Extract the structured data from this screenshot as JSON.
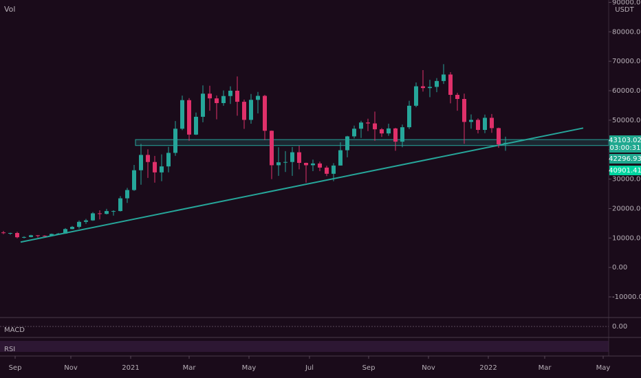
{
  "chart_data": {
    "type": "candlestick",
    "volume_label": "Vol",
    "currency": "USDT",
    "open": [
      11900,
      11650,
      11700,
      10250,
      10330,
      10920,
      10780,
      10670,
      11380,
      11500,
      13030,
      13780,
      15480,
      15970,
      18370,
      18180,
      19150,
      19150,
      23470,
      26280,
      33000,
      38200,
      35800,
      32270,
      34300,
      38900,
      47100,
      56800,
      45100,
      51150,
      59000,
      57400,
      55800,
      58200,
      60000,
      56250,
      50100,
      56900,
      58250,
      46400,
      34700,
      35700,
      35800,
      39100,
      35500,
      34700,
      35300,
      33900,
      31800,
      34600,
      39800,
      44500,
      47100,
      49200,
      48900,
      46900,
      45500,
      47200,
      42700,
      47600,
      54900,
      61500,
      60900,
      61300,
      63300,
      65500,
      58600,
      57200,
      49400,
      50100,
      46700,
      50800,
      47300,
      41800
    ],
    "high": [
      12400,
      11800,
      12100,
      10600,
      11100,
      10990,
      10950,
      11500,
      11720,
      13350,
      14100,
      15960,
      16480,
      18800,
      19400,
      19900,
      19400,
      24200,
      27000,
      34800,
      41950,
      40100,
      37850,
      38400,
      40950,
      49700,
      58350,
      57500,
      52600,
      61800,
      61700,
      58400,
      60100,
      61500,
      64850,
      57000,
      58900,
      59600,
      58600,
      46500,
      40800,
      39500,
      40900,
      41300,
      35600,
      36600,
      35950,
      34550,
      35400,
      42500,
      44700,
      48150,
      49800,
      50500,
      52900,
      47300,
      48800,
      47400,
      48500,
      56600,
      62800,
      67000,
      63700,
      64300,
      69000,
      66300,
      59300,
      59000,
      51950,
      50600,
      51900,
      52100,
      47500,
      44400
    ],
    "low": [
      11300,
      11100,
      9900,
      9850,
      10200,
      10150,
      10500,
      10550,
      11200,
      11400,
      12950,
      13200,
      14800,
      15800,
      16300,
      18000,
      17600,
      19000,
      21900,
      26000,
      28100,
      30400,
      28800,
      29300,
      32300,
      37900,
      46600,
      43000,
      44950,
      49300,
      53200,
      50300,
      54900,
      55500,
      51500,
      47050,
      48800,
      52300,
      43200,
      30000,
      31100,
      32400,
      31100,
      33300,
      28800,
      32700,
      32700,
      31000,
      29300,
      34600,
      37400,
      43800,
      43950,
      46300,
      43000,
      44300,
      44700,
      39600,
      40800,
      47000,
      54400,
      59700,
      57800,
      59500,
      62300,
      55700,
      53200,
      42000,
      47100,
      45500,
      45600,
      45700,
      40600,
      39600
    ],
    "close": [
      11650,
      11700,
      10250,
      10330,
      10920,
      10780,
      10670,
      11380,
      11500,
      13030,
      13780,
      15480,
      15970,
      18370,
      18180,
      19150,
      19150,
      23470,
      26280,
      33000,
      38200,
      35800,
      32270,
      34300,
      38900,
      47100,
      56800,
      45100,
      51150,
      59000,
      57400,
      55800,
      58200,
      60000,
      56250,
      50100,
      56900,
      58250,
      46400,
      34700,
      35700,
      35800,
      39100,
      35500,
      34700,
      35300,
      33900,
      31800,
      34600,
      39800,
      44500,
      47100,
      49200,
      48900,
      46900,
      45500,
      47200,
      42700,
      47600,
      54900,
      61500,
      60900,
      61300,
      63300,
      65500,
      58600,
      57200,
      49400,
      50100,
      46700,
      50800,
      47300,
      41800,
      42300
    ],
    "up_color": "#26a69a",
    "down_color": "#e0306a",
    "xlim": [
      0,
      88.5
    ],
    "xticks": [
      {
        "value": 2.2,
        "label": "Sep"
      },
      {
        "value": 10.3,
        "label": "Nov"
      },
      {
        "value": 19,
        "label": "2021"
      },
      {
        "value": 27.5,
        "label": "Mar"
      },
      {
        "value": 36.2,
        "label": "May"
      },
      {
        "value": 45,
        "label": "Jul"
      },
      {
        "value": 53.6,
        "label": "Sep"
      },
      {
        "value": 62.3,
        "label": "Nov"
      },
      {
        "value": 71,
        "label": "2022"
      },
      {
        "value": 79.2,
        "label": "Mar"
      },
      {
        "value": 87.7,
        "label": "May"
      }
    ],
    "ylim": [
      -17000,
      90800
    ],
    "yticks": [
      {
        "value": -10000,
        "label": "-10000.00"
      },
      {
        "value": 0,
        "label": "0.00"
      },
      {
        "value": 10000,
        "label": "10000.00"
      },
      {
        "value": 20000,
        "label": "20000.00"
      },
      {
        "value": 30000,
        "label": "30000.00"
      },
      {
        "value": 40000,
        "label": "40000.00"
      },
      {
        "value": 50000,
        "label": "50000.00"
      },
      {
        "value": 60000,
        "label": "60000.00"
      },
      {
        "value": 70000,
        "label": "70000.00"
      },
      {
        "value": 80000,
        "label": "80000.00"
      },
      {
        "value": 90000,
        "label": "90000.00"
      }
    ],
    "support_zone": {
      "x": [
        19.7,
        88.5
      ],
      "y": [
        41400,
        43400
      ],
      "color": "#26a69a"
    },
    "trendline": {
      "x": [
        3,
        84.8
      ],
      "y": [
        8600,
        47330
      ],
      "color": "#26a69a"
    },
    "price_tags": [
      "43103.02",
      "03:00:31",
      "42296.93",
      "40901.41"
    ],
    "macd": {
      "label": "MACD",
      "ytick": "0.00"
    },
    "rsi": {
      "label": "RSI"
    }
  }
}
